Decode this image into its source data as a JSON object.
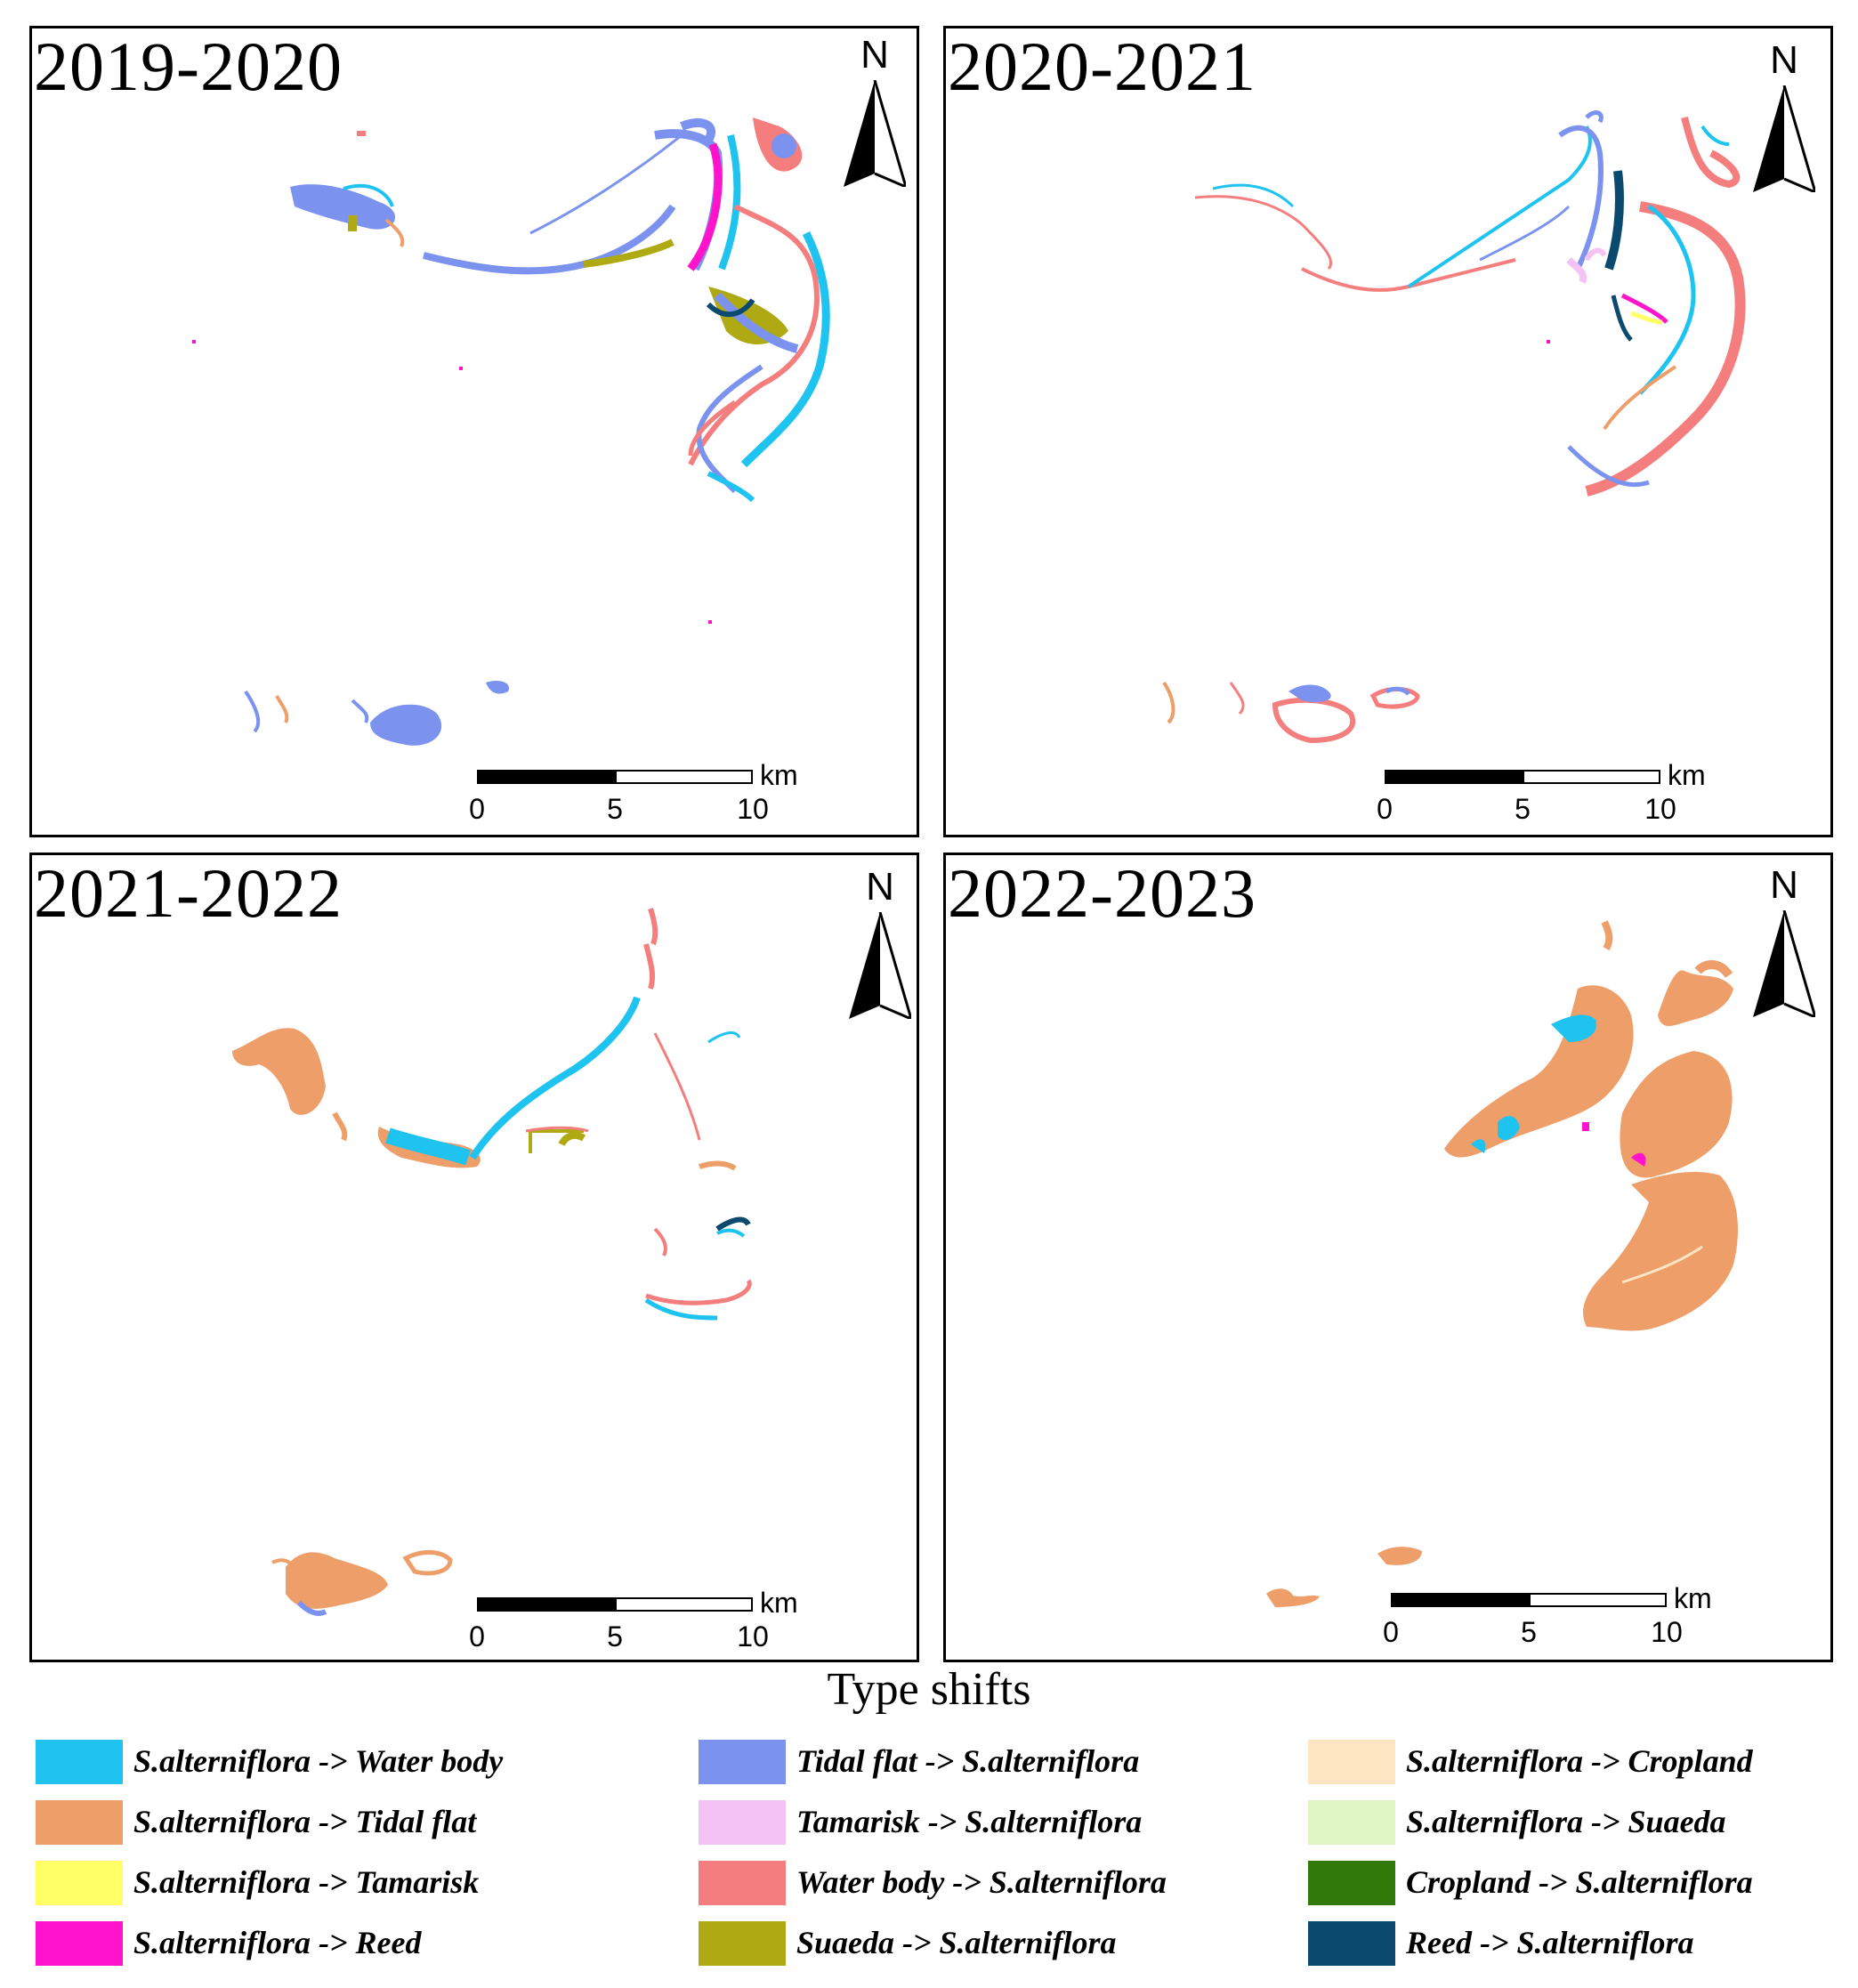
{
  "panels": [
    {
      "title": "2019-2020",
      "north": "N",
      "scale": {
        "unit": "km",
        "ticks": [
          "0",
          "5",
          "10"
        ]
      }
    },
    {
      "title": "2020-2021",
      "north": "N",
      "scale": {
        "unit": "km",
        "ticks": [
          "0",
          "5",
          "10"
        ]
      }
    },
    {
      "title": "2021-2022",
      "north": "N",
      "scale": {
        "unit": "km",
        "ticks": [
          "0",
          "5",
          "10"
        ]
      }
    },
    {
      "title": "2022-2023",
      "north": "N",
      "scale": {
        "unit": "km",
        "ticks": [
          "0",
          "5",
          "10"
        ]
      }
    }
  ],
  "legend": {
    "title": "Type shifts",
    "items": [
      {
        "label": "S.alterniflora ->  Water body",
        "color": "#1EC3F0"
      },
      {
        "label": "S.alterniflora -> Tidal flat",
        "color": "#EE9E69"
      },
      {
        "label": "S.alterniflora -> Tamarisk",
        "color": "#FFFF66"
      },
      {
        "label": "S.alterniflora -> Reed",
        "color": "#FF14CC"
      },
      {
        "label": "Tidal flat -> S.alterniflora",
        "color": "#7B93EE"
      },
      {
        "label": "Tamarisk -> S.alterniflora",
        "color": "#F4C2F4"
      },
      {
        "label": "Water body -> S.alterniflora",
        "color": "#F47E7E"
      },
      {
        "label": "Suaeda -> S.alterniflora",
        "color": "#AFAA14"
      },
      {
        "label": "S.alterniflora -> Cropland",
        "color": "#FFE6C2"
      },
      {
        "label": "S.alterniflora -> Suaeda",
        "color": "#DFF7C4"
      },
      {
        "label": "Cropland -> S.alterniflora",
        "color": "#317A0A"
      },
      {
        "label": "Reed -> S.alterniflora",
        "color": "#0B4A6E"
      }
    ]
  }
}
